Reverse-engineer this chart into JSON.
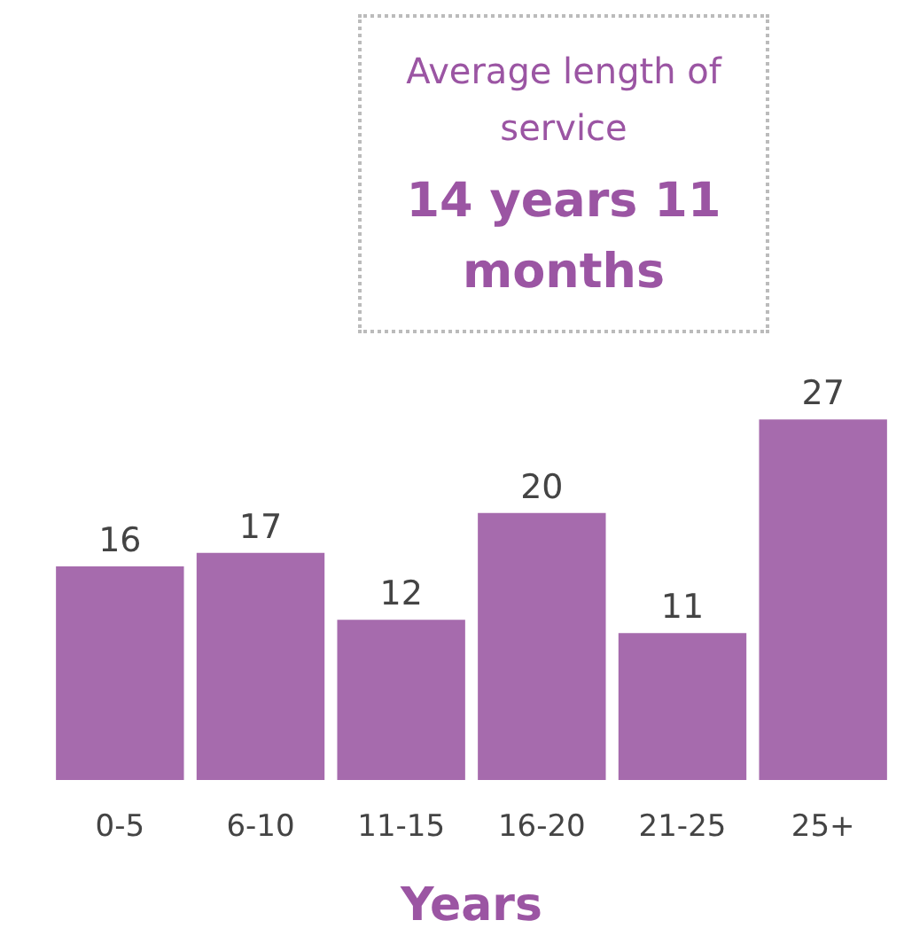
{
  "chart_data": {
    "type": "bar",
    "xlabel": "Years",
    "categories": [
      "0-5",
      "6-10",
      "11-15",
      "16-20",
      "21-25",
      "25+"
    ],
    "values": [
      16,
      17,
      12,
      20,
      11,
      27
    ],
    "color": "#a66bad",
    "data_labels": true,
    "annotations": [
      "Average length of service",
      "14 years 11 months"
    ]
  }
}
